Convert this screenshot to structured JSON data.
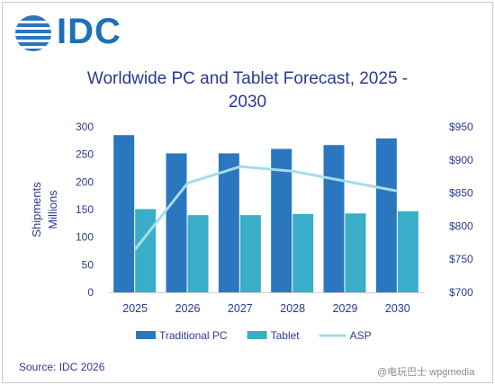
{
  "logo": {
    "text": "IDC",
    "icon": "idc-globe-icon"
  },
  "source": "Source: IDC 2026",
  "watermark": "@电玩巴士 wpgmedia",
  "colors": {
    "traditional_pc": "#2a77bf",
    "tablet": "#3aaec8",
    "asp": "#a6dce8",
    "text": "#2b3a8f"
  },
  "chart_data": {
    "type": "bar",
    "title": "Worldwide PC and Tablet Forecast, 2025 - 2030",
    "title_lines": [
      "Worldwide PC and Tablet Forecast, 2025 -",
      "2030"
    ],
    "categories": [
      "2025",
      "2026",
      "2027",
      "2028",
      "2029",
      "2030"
    ],
    "series": [
      {
        "name": "Traditional PC",
        "kind": "bar",
        "axis": "left",
        "values": [
          285,
          252,
          252,
          260,
          267,
          279
        ]
      },
      {
        "name": "Tablet",
        "kind": "bar",
        "axis": "left",
        "values": [
          151,
          140,
          140,
          142,
          143,
          147
        ]
      },
      {
        "name": "ASP",
        "kind": "line",
        "axis": "right",
        "values": [
          765,
          865,
          890,
          883,
          868,
          853
        ]
      }
    ],
    "ylabel": "Shipments Millions",
    "ylabel_lines": [
      "Shipments",
      "Millions"
    ],
    "ylim": [
      0,
      300
    ],
    "yticks": [
      "0",
      "50",
      "100",
      "150",
      "200",
      "250",
      "300"
    ],
    "y2lim": [
      700,
      950
    ],
    "y2ticks": [
      "$700",
      "$750",
      "$800",
      "$850",
      "$900",
      "$950"
    ],
    "grid": false,
    "legend": "bottom"
  }
}
